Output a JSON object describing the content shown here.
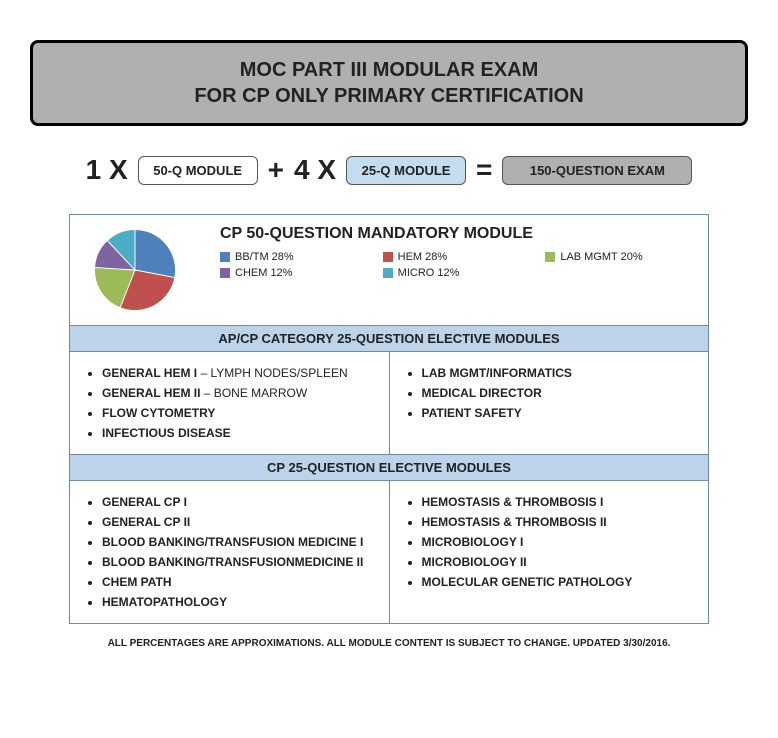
{
  "title": {
    "line1": "MOC PART III MODULAR EXAM",
    "line2": "FOR CP ONLY PRIMARY CERTIFICATION"
  },
  "equation": {
    "mult1": "1 X",
    "module1": "50-Q MODULE",
    "plus": "+",
    "mult2": "4 X",
    "module2": "25-Q MODULE",
    "equals": "=",
    "result": "150-QUESTION EXAM"
  },
  "mandatory": {
    "title": "CP 50-QUESTION MANDATORY MODULE",
    "pie": {
      "slices": [
        {
          "label": "BB/TM 28%",
          "value": 28,
          "color": "#4f81bd"
        },
        {
          "label": "HEM 28%",
          "value": 28,
          "color": "#c0504d"
        },
        {
          "label": "LAB MGMT 20%",
          "value": 20,
          "color": "#9bbb59"
        },
        {
          "label": "CHEM 12%",
          "value": 12,
          "color": "#8064a2"
        },
        {
          "label": "MICRO 12%",
          "value": 12,
          "color": "#4bacc6"
        }
      ]
    }
  },
  "sections": [
    {
      "header": "AP/CP CATEGORY 25-QUESTION ELECTIVE MODULES",
      "left": [
        {
          "bold": "GENERAL HEM I",
          "rest": " – LYMPH NODES/SPLEEN"
        },
        {
          "bold": "GENERAL HEM II",
          "rest": " – BONE MARROW"
        },
        {
          "bold": "FLOW CYTOMETRY",
          "rest": ""
        },
        {
          "bold": "INFECTIOUS DISEASE",
          "rest": ""
        }
      ],
      "right": [
        {
          "bold": "LAB MGMT/INFORMATICS",
          "rest": ""
        },
        {
          "bold": "MEDICAL DIRECTOR",
          "rest": ""
        },
        {
          "bold": "PATIENT SAFETY",
          "rest": ""
        }
      ]
    },
    {
      "header": "CP 25-QUESTION ELECTIVE MODULES",
      "left": [
        {
          "bold": "GENERAL CP I",
          "rest": ""
        },
        {
          "bold": "GENERAL CP II",
          "rest": ""
        },
        {
          "bold": "BLOOD BANKING/TRANSFUSION MEDICINE I",
          "rest": ""
        },
        {
          "bold": "BLOOD BANKING/TRANSFUSIONMEDICINE II",
          "rest": ""
        },
        {
          "bold": "CHEM PATH",
          "rest": ""
        },
        {
          "bold": "HEMATOPATHOLOGY",
          "rest": ""
        }
      ],
      "right": [
        {
          "bold": "HEMOSTASIS & THROMBOSIS I",
          "rest": ""
        },
        {
          "bold": "HEMOSTASIS & THROMBOSIS II",
          "rest": ""
        },
        {
          "bold": "MICROBIOLOGY I",
          "rest": ""
        },
        {
          "bold": "MICROBIOLOGY II",
          "rest": ""
        },
        {
          "bold": "MOLECULAR GENETIC PATHOLOGY",
          "rest": ""
        }
      ]
    }
  ],
  "footnote": "ALL PERCENTAGES ARE APPROXIMATIONS.  ALL MODULE CONTENT IS SUBJECT TO CHANGE.  UPDATED 3/30/2016."
}
